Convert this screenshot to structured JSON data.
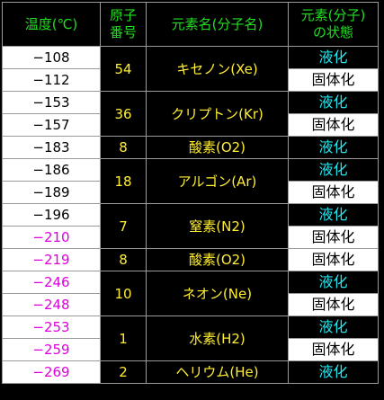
{
  "header": {
    "temperature_line1": "温度(℃)",
    "atomic_number_line1": "原子",
    "atomic_number_line2": "番号",
    "element_name": "元素名(分子名)",
    "state_line1": "元素(分子)",
    "state_line2": "の状態"
  },
  "colors": {
    "header_text": "#22dd22",
    "element_text": "#ffee33",
    "liquid_text": "#22e6ee",
    "temp_black": "#000000",
    "temp_magenta": "#dd00dd",
    "grid_line": "#9a9a9a"
  },
  "rows": [
    {
      "temperature": "−108",
      "temp_color": "black",
      "state": "液化",
      "state_type": "liquid",
      "group": {
        "atomic_number": "54",
        "element": "キセノン(Xe)",
        "span": 2
      }
    },
    {
      "temperature": "−112",
      "temp_color": "black",
      "state": "固体化",
      "state_type": "solid"
    },
    {
      "temperature": "−153",
      "temp_color": "black",
      "state": "液化",
      "state_type": "liquid",
      "group": {
        "atomic_number": "36",
        "element": "クリプトン(Kr)",
        "span": 2
      }
    },
    {
      "temperature": "−157",
      "temp_color": "black",
      "state": "固体化",
      "state_type": "solid"
    },
    {
      "temperature": "−183",
      "temp_color": "black",
      "state": "液化",
      "state_type": "liquid",
      "group": {
        "atomic_number": "8",
        "element": "酸素(O2)",
        "span": 1
      }
    },
    {
      "temperature": "−186",
      "temp_color": "black",
      "state": "液化",
      "state_type": "liquid",
      "group": {
        "atomic_number": "18",
        "element": "アルゴン(Ar)",
        "span": 2
      }
    },
    {
      "temperature": "−189",
      "temp_color": "black",
      "state": "固体化",
      "state_type": "solid"
    },
    {
      "temperature": "−196",
      "temp_color": "black",
      "state": "液化",
      "state_type": "liquid",
      "group": {
        "atomic_number": "7",
        "element": "窒素(N2)",
        "span": 2
      }
    },
    {
      "temperature": "−210",
      "temp_color": "magenta",
      "state": "固体化",
      "state_type": "solid"
    },
    {
      "temperature": "−219",
      "temp_color": "magenta",
      "state": "固体化",
      "state_type": "solid",
      "group": {
        "atomic_number": "8",
        "element": "酸素(O2)",
        "span": 1
      }
    },
    {
      "temperature": "−246",
      "temp_color": "magenta",
      "state": "液化",
      "state_type": "liquid",
      "group": {
        "atomic_number": "10",
        "element": "ネオン(Ne)",
        "span": 2
      }
    },
    {
      "temperature": "−248",
      "temp_color": "magenta",
      "state": "固体化",
      "state_type": "solid"
    },
    {
      "temperature": "−253",
      "temp_color": "magenta",
      "state": "液化",
      "state_type": "liquid",
      "group": {
        "atomic_number": "1",
        "element": "水素(H2)",
        "span": 2
      }
    },
    {
      "temperature": "−259",
      "temp_color": "magenta",
      "state": "固体化",
      "state_type": "solid"
    },
    {
      "temperature": "−269",
      "temp_color": "magenta",
      "state": "液化",
      "state_type": "liquid",
      "group": {
        "atomic_number": "2",
        "element": "ヘリウム(He)",
        "span": 1
      }
    }
  ]
}
